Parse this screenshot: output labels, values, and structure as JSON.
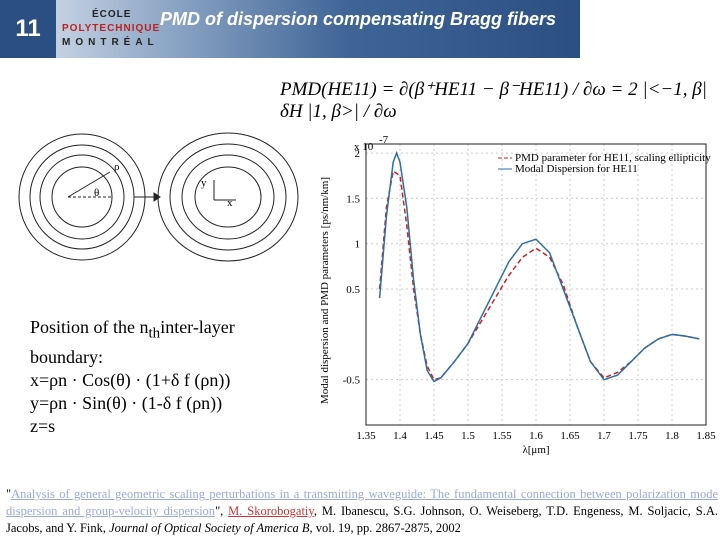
{
  "slide_number": "11",
  "logo": {
    "line1": "ÉCOLE",
    "line2": "POLYTECHNIQUE",
    "line3": "MONTRÉAL"
  },
  "title": "PMD of dispersion compensating Bragg fibers",
  "formula": "PMD(HE11) = ∂(β⁺HE11 − β⁻HE11) / ∂ω = 2 |<−1, β| δH |1, β>| / ∂ω",
  "diagram": {
    "rho": "ρ",
    "theta": "θ",
    "y": "y",
    "x": "x"
  },
  "position": {
    "line1": "Position of the n",
    "line1_sub": "th",
    "line1_end": "inter-layer",
    "line2": "boundary:",
    "eq1": "x=ρn · Cos(θ) · (1+δ f (ρn))",
    "eq2": "y=ρn · Sin(θ) · (1-δ f (ρn))",
    "eq3": "z=s"
  },
  "citation": {
    "open": "\"",
    "link": "Analysis of general geometric scaling perturbations in a transmitting waveguide: The fundamental connection between polarization mode dispersion and group-velocity dispersion",
    "close": "\", ",
    "author": "M. Skorobogatiy",
    "authors": ", M. Ibanescu, S.G. Johnson, O. Weiseberg, T.D. Engeness, M. Soljacic, S.A. Jacobs, and Y. Fink, ",
    "journal": "Journal of Optical Society of America B",
    "tail": ", vol. 19, pp. 2867-2875, 2002"
  },
  "chart_data": {
    "type": "line",
    "x_label": "λ[μm]",
    "y_label": "Modal dispersion and PMD parameters [ps/nm/km]",
    "y_multiplier": "x 10",
    "y_multiplier_exp": "-7",
    "xlim": [
      1.35,
      1.85
    ],
    "xticks": [
      1.35,
      1.4,
      1.45,
      1.5,
      1.55,
      1.6,
      1.65,
      1.7,
      1.75,
      1.8,
      1.85
    ],
    "ylim": [
      -1,
      2.1
    ],
    "yticks": [
      -0.5,
      0.5,
      1,
      1.5,
      2
    ],
    "grid": true,
    "legend": "upper right",
    "series": [
      {
        "name": "PMD parameter for HE11, scaling ellipticity",
        "color": "#cc2222",
        "dash": true,
        "x": [
          1.37,
          1.38,
          1.39,
          1.4,
          1.41,
          1.42,
          1.43,
          1.44,
          1.45,
          1.46,
          1.48,
          1.5,
          1.52,
          1.54,
          1.56,
          1.58,
          1.6,
          1.62,
          1.64,
          1.66,
          1.68,
          1.7,
          1.72,
          1.74,
          1.76,
          1.78,
          1.8,
          1.82,
          1.84
        ],
        "values": [
          0.5,
          1.4,
          1.8,
          1.75,
          1.2,
          0.5,
          0,
          -0.35,
          -0.5,
          -0.48,
          -0.3,
          -0.1,
          0.15,
          0.4,
          0.65,
          0.85,
          0.95,
          0.85,
          0.55,
          0.1,
          -0.3,
          -0.48,
          -0.42,
          -0.3,
          -0.15,
          -0.05,
          0,
          -0.02,
          -0.05
        ]
      },
      {
        "name": "Modal Dispersion for HE11",
        "color": "#2a6fa8",
        "dash": false,
        "x": [
          1.37,
          1.38,
          1.39,
          1.395,
          1.4,
          1.41,
          1.42,
          1.43,
          1.44,
          1.45,
          1.46,
          1.48,
          1.5,
          1.52,
          1.54,
          1.56,
          1.58,
          1.6,
          1.62,
          1.64,
          1.66,
          1.68,
          1.7,
          1.72,
          1.74,
          1.76,
          1.78,
          1.8,
          1.82,
          1.84
        ],
        "values": [
          0.4,
          1.3,
          1.9,
          2,
          1.9,
          1.4,
          0.6,
          0,
          -0.4,
          -0.52,
          -0.48,
          -0.3,
          -0.1,
          0.2,
          0.5,
          0.8,
          1,
          1.05,
          0.9,
          0.5,
          0.1,
          -0.3,
          -0.5,
          -0.45,
          -0.3,
          -0.15,
          -0.05,
          0,
          -0.02,
          -0.05
        ]
      }
    ]
  }
}
